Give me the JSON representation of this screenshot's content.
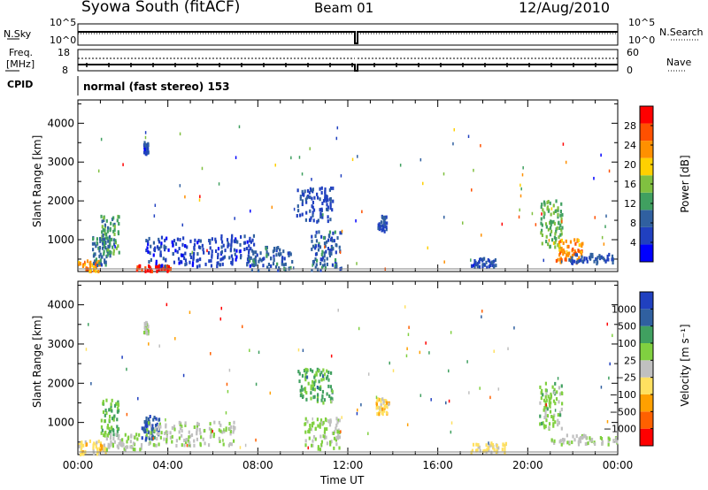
{
  "header": {
    "station": "Syowa South (fitACF)",
    "beam": "Beam 01",
    "date": "12/Aug/2010"
  },
  "top_panel": {
    "left_label": "N.Sky",
    "right_label": "N.Search",
    "left_ticks": [
      "10^5",
      "10^0"
    ],
    "right_ticks": [
      "10^5",
      "10^0"
    ]
  },
  "freq_panel": {
    "left_label_1": "Freq.",
    "left_label_2": "[MHz]",
    "right_label": "Nave",
    "left_ticks": [
      "18",
      "8"
    ],
    "right_ticks": [
      "60",
      "0"
    ]
  },
  "cpid": {
    "label": "CPID",
    "text": "normal (fast stereo) 153"
  },
  "colors": {
    "power_scale": [
      "#0000ff",
      "#2040c0",
      "#3060a0",
      "#40a060",
      "#80c040",
      "#ffd000",
      "#ff9000",
      "#ff5000",
      "#ff0000"
    ],
    "velocity_scale": [
      "#ff0000",
      "#ff6000",
      "#ffa000",
      "#ffe060",
      "#c0c0c0",
      "#80d040",
      "#40a060",
      "#3060a0",
      "#2040c0"
    ]
  },
  "power_colorbar": {
    "label": "Power [dB]",
    "ticks": [
      "28",
      "24",
      "20",
      "16",
      "12",
      "8",
      "4"
    ]
  },
  "velocity_colorbar": {
    "label": "Velocity [m s⁻¹]",
    "ticks": [
      "1000",
      "500",
      "100",
      "25",
      "−25",
      "−100",
      "−500",
      "−1000"
    ]
  },
  "x_axis": {
    "label": "Time UT",
    "ticks": [
      "00:00",
      "04:00",
      "08:00",
      "12:00",
      "16:00",
      "20:00",
      "00:00"
    ]
  },
  "chart_data": [
    {
      "type": "heatmap",
      "title": "Power",
      "xlabel": "Time UT",
      "ylabel": "Slant Range [km]",
      "yticks": [
        "1000",
        "2000",
        "3000",
        "4000"
      ],
      "ylim": [
        180,
        4600
      ],
      "xlim": [
        0,
        24
      ],
      "zlabel": "Power [dB]",
      "zlim": [
        0,
        30
      ],
      "clusters": [
        {
          "t": 0.5,
          "r": 300,
          "dt": 0.5,
          "dr": 150,
          "z": 22
        },
        {
          "t": 1.4,
          "r": 1100,
          "dt": 0.4,
          "dr": 500,
          "z": 12
        },
        {
          "t": 1.0,
          "r": 700,
          "dt": 0.4,
          "dr": 400,
          "z": 9
        },
        {
          "t": 3.0,
          "r": 3350,
          "dt": 0.1,
          "dr": 150,
          "z": 6
        },
        {
          "t": 3.3,
          "r": 250,
          "dt": 0.8,
          "dr": 80,
          "z": 27
        },
        {
          "t": 5.5,
          "r": 700,
          "dt": 2.5,
          "dr": 400,
          "z": 5
        },
        {
          "t": 8.5,
          "r": 500,
          "dt": 1.0,
          "dr": 300,
          "z": 8
        },
        {
          "t": 10.5,
          "r": 1900,
          "dt": 0.8,
          "dr": 450,
          "z": 6
        },
        {
          "t": 11.0,
          "r": 700,
          "dt": 0.7,
          "dr": 500,
          "z": 8
        },
        {
          "t": 13.5,
          "r": 1400,
          "dt": 0.2,
          "dr": 200,
          "z": 6
        },
        {
          "t": 18.0,
          "r": 400,
          "dt": 0.6,
          "dr": 120,
          "z": 6
        },
        {
          "t": 21.0,
          "r": 1400,
          "dt": 0.5,
          "dr": 600,
          "z": 14
        },
        {
          "t": 21.8,
          "r": 700,
          "dt": 0.6,
          "dr": 300,
          "z": 22
        },
        {
          "t": 22.8,
          "r": 500,
          "dt": 1.0,
          "dr": 120,
          "z": 6
        }
      ]
    },
    {
      "type": "heatmap",
      "title": "Velocity",
      "xlabel": "Time UT",
      "ylabel": "Slant Range [km]",
      "yticks": [
        "1000",
        "2000",
        "3000",
        "4000"
      ],
      "ylim": [
        180,
        4600
      ],
      "xlim": [
        0,
        24
      ],
      "zlabel": "Velocity [m s⁻¹]",
      "zlim": [
        -1000,
        1000
      ],
      "clusters": [
        {
          "t": 0.6,
          "r": 350,
          "dt": 0.6,
          "dr": 200,
          "z": -200
        },
        {
          "t": 1.4,
          "r": 1100,
          "dt": 0.4,
          "dr": 500,
          "z": 300
        },
        {
          "t": 2.0,
          "r": 500,
          "dt": 0.8,
          "dr": 200,
          "z": 80
        },
        {
          "t": 3.0,
          "r": 3400,
          "dt": 0.1,
          "dr": 150,
          "z": 60
        },
        {
          "t": 3.2,
          "r": 850,
          "dt": 0.4,
          "dr": 300,
          "z": 700
        },
        {
          "t": 5.0,
          "r": 700,
          "dt": 2.0,
          "dr": 300,
          "z": 90
        },
        {
          "t": 10.5,
          "r": 1900,
          "dt": 0.8,
          "dr": 450,
          "z": 400
        },
        {
          "t": 10.8,
          "r": 700,
          "dt": 0.8,
          "dr": 400,
          "z": 150
        },
        {
          "t": 13.5,
          "r": 1400,
          "dt": 0.3,
          "dr": 200,
          "z": -250
        },
        {
          "t": 18.2,
          "r": 350,
          "dt": 0.8,
          "dr": 120,
          "z": -150
        },
        {
          "t": 21.0,
          "r": 1400,
          "dt": 0.5,
          "dr": 600,
          "z": 200
        },
        {
          "t": 22.5,
          "r": 550,
          "dt": 1.5,
          "dr": 120,
          "z": 60
        }
      ]
    }
  ]
}
